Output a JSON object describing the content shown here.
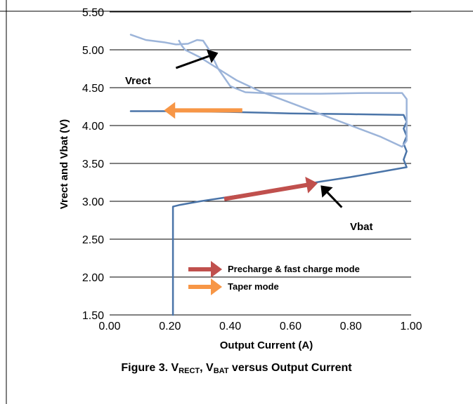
{
  "chart_data": {
    "type": "line",
    "xlabel": "Output Current (A)",
    "ylabel": "Vrect and Vbat (V)",
    "xlim": [
      0.0,
      1.0
    ],
    "ylim": [
      1.5,
      5.5
    ],
    "x_ticks": [
      "0.00",
      "0.20",
      "0.40",
      "0.60",
      "0.80",
      "1.00"
    ],
    "y_ticks": [
      "1.50",
      "2.00",
      "2.50",
      "3.00",
      "3.50",
      "4.00",
      "4.50",
      "5.00",
      "5.50"
    ],
    "grid": "horizontal",
    "series": [
      {
        "name": "Vbat",
        "color": "#4a74a8",
        "points": [
          [
            0.21,
            1.5
          ],
          [
            0.21,
            2.93
          ],
          [
            0.23,
            2.95
          ],
          [
            0.3,
            3.0
          ],
          [
            0.4,
            3.06
          ],
          [
            0.5,
            3.12
          ],
          [
            0.6,
            3.19
          ],
          [
            0.7,
            3.26
          ],
          [
            0.8,
            3.32
          ],
          [
            0.9,
            3.39
          ],
          [
            0.985,
            3.45
          ],
          [
            0.975,
            3.55
          ],
          [
            0.985,
            3.66
          ],
          [
            0.975,
            3.76
          ],
          [
            0.985,
            3.86
          ],
          [
            0.975,
            3.96
          ],
          [
            0.985,
            4.05
          ],
          [
            0.975,
            4.14
          ],
          [
            0.8,
            4.15
          ],
          [
            0.6,
            4.16
          ],
          [
            0.4,
            4.18
          ],
          [
            0.2,
            4.19
          ],
          [
            0.07,
            4.19
          ]
        ]
      },
      {
        "name": "Vrect",
        "color": "#9cb4d9",
        "points": [
          [
            0.07,
            5.2
          ],
          [
            0.12,
            5.13
          ],
          [
            0.18,
            5.1
          ],
          [
            0.22,
            5.07
          ],
          [
            0.26,
            5.08
          ],
          [
            0.29,
            5.13
          ],
          [
            0.31,
            5.12
          ],
          [
            0.33,
            5.0
          ],
          [
            0.36,
            4.75
          ],
          [
            0.4,
            4.52
          ],
          [
            0.45,
            4.44
          ],
          [
            0.55,
            4.42
          ],
          [
            0.7,
            4.42
          ],
          [
            0.85,
            4.43
          ],
          [
            0.97,
            4.43
          ],
          [
            0.985,
            4.35
          ],
          [
            0.985,
            3.8
          ],
          [
            0.97,
            3.72
          ],
          [
            0.9,
            3.85
          ],
          [
            0.8,
            4.0
          ],
          [
            0.7,
            4.15
          ],
          [
            0.6,
            4.3
          ],
          [
            0.5,
            4.45
          ],
          [
            0.42,
            4.6
          ],
          [
            0.36,
            4.75
          ],
          [
            0.3,
            4.9
          ],
          [
            0.25,
            5.0
          ],
          [
            0.24,
            5.05
          ],
          [
            0.23,
            5.12
          ]
        ]
      }
    ],
    "annotations": [
      {
        "text": "Vrect"
      },
      {
        "text": "Vbat"
      }
    ],
    "legend": [
      {
        "label": "Precharge & fast charge mode",
        "color": "#c0504d"
      },
      {
        "label": "Taper mode",
        "color": "#f79646"
      }
    ],
    "arrows": [
      {
        "label": "Precharge & fast charge mode",
        "color": "#c0504d",
        "from": [
          0.38,
          3.03
        ],
        "to": [
          0.69,
          3.24
        ]
      },
      {
        "label": "Taper mode",
        "color": "#f79646",
        "from": [
          0.44,
          4.2
        ],
        "to": [
          0.18,
          4.2
        ]
      },
      {
        "label": "Vrect pointer",
        "color": "#000000",
        "from": [
          0.22,
          4.76
        ],
        "to": [
          0.36,
          4.96
        ]
      },
      {
        "label": "Vbat pointer",
        "color": "#000000",
        "from": [
          0.77,
          2.92
        ],
        "to": [
          0.7,
          3.21
        ]
      }
    ]
  },
  "caption": {
    "prefix": "Figure 3. V",
    "sub1": "RECT",
    "mid": ", V",
    "sub2": "BAT",
    "suffix": " versus Output Current"
  }
}
